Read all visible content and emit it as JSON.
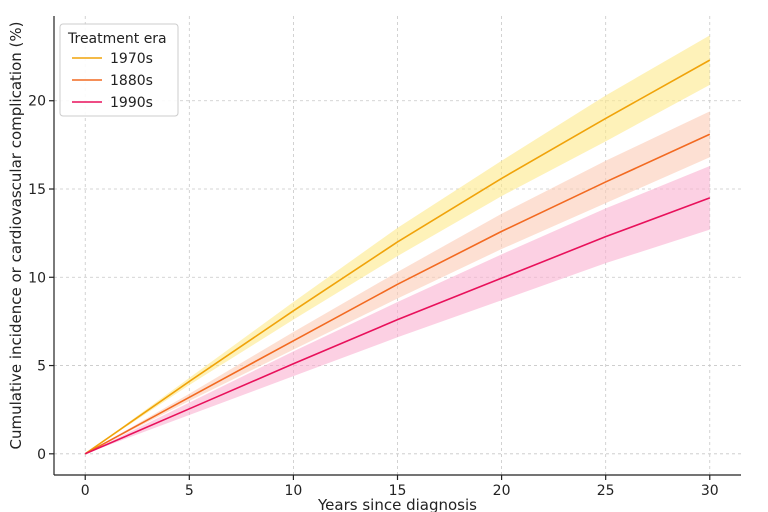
{
  "chart_data": {
    "type": "line",
    "title": "",
    "xlabel": "Years since diagnosis",
    "ylabel": "Cumulative incidence or cardiovascular complication (%)",
    "xlim": [
      -1.5,
      31.5
    ],
    "ylim": [
      -1.2,
      24.8
    ],
    "x_ticks": [
      0,
      5,
      10,
      15,
      20,
      25,
      30
    ],
    "y_ticks": [
      0,
      5,
      10,
      15,
      20
    ],
    "grid": true,
    "legend": {
      "title": "Treatment era",
      "position": "top-left"
    },
    "x": [
      0,
      5,
      10,
      15,
      20,
      25,
      30
    ],
    "series": [
      {
        "name": "1970s",
        "color": "#f0a30a",
        "band_color": "#fde98a",
        "values": [
          0,
          4.1,
          8.1,
          12.0,
          15.6,
          19.0,
          22.3
        ],
        "lower": [
          0,
          3.9,
          7.6,
          11.2,
          14.6,
          17.7,
          20.9
        ],
        "upper": [
          0,
          4.3,
          8.6,
          12.8,
          16.6,
          20.3,
          23.7
        ]
      },
      {
        "name": "1880s",
        "color": "#f26a21",
        "band_color": "#fbcbb5",
        "values": [
          0,
          3.2,
          6.4,
          9.6,
          12.6,
          15.4,
          18.1
        ],
        "lower": [
          0,
          3.0,
          5.9,
          8.8,
          11.6,
          14.2,
          16.8
        ],
        "upper": [
          0,
          3.4,
          6.9,
          10.3,
          13.6,
          16.6,
          19.4
        ]
      },
      {
        "name": "1990s",
        "color": "#e8115b",
        "band_color": "#fab0d0",
        "values": [
          0,
          2.55,
          5.1,
          7.6,
          9.95,
          12.3,
          14.5
        ],
        "lower": [
          0,
          2.2,
          4.4,
          6.6,
          8.7,
          10.8,
          12.7
        ],
        "upper": [
          0,
          2.9,
          5.8,
          8.6,
          11.3,
          13.9,
          16.3
        ]
      }
    ]
  }
}
